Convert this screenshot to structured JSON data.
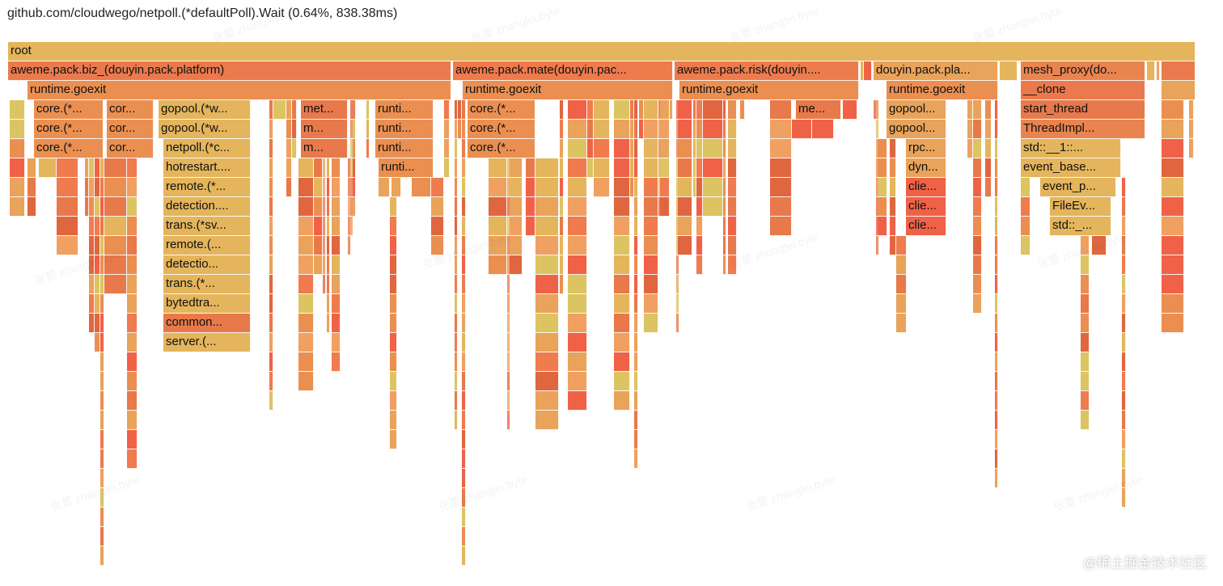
{
  "header": {
    "title": "github.com/cloudwego/netpoll.(*defaultPoll).Wait (0.64%, 838.38ms)"
  },
  "watermark": "张蕾 zhanglei.byte",
  "corner_mark": "@稀土掘金技术社区",
  "palette": [
    "#e0663f",
    "#e8794a",
    "#eb8f51",
    "#e9a35a",
    "#e4b55c",
    "#dcc462",
    "#f0a060",
    "#ef7b4f",
    "#f06248"
  ],
  "frames": [
    {
      "label": "root",
      "row": 0,
      "start": 10,
      "end": 1478,
      "color": "#e4b55c"
    },
    {
      "label": "aweme.pack.biz_(douyin.pack.platform)",
      "row": 1,
      "start": 10,
      "end": 558,
      "color": "#ea7a4d"
    },
    {
      "label": "aweme.pack.mate(douyin.pac...",
      "row": 1,
      "start": 560,
      "end": 832,
      "color": "#ef7a4c"
    },
    {
      "label": "aweme.pack.risk(douyin....",
      "row": 1,
      "start": 834,
      "end": 1062,
      "color": "#ec7c4e"
    },
    {
      "label": "",
      "row": 1,
      "start": 1064,
      "end": 1066,
      "color": "#e4b55c"
    },
    {
      "label": "",
      "row": 1,
      "start": 1068,
      "end": 1078,
      "color": "#f06248"
    },
    {
      "label": "douyin.pack.pla...",
      "row": 1,
      "start": 1080,
      "end": 1234,
      "color": "#e9a35a"
    },
    {
      "label": "",
      "row": 1,
      "start": 1236,
      "end": 1258,
      "color": "#e4b55c"
    },
    {
      "label": "mesh_proxy(do...",
      "row": 1,
      "start": 1262,
      "end": 1416,
      "color": "#e98450"
    },
    {
      "label": "",
      "row": 1,
      "start": 1418,
      "end": 1428,
      "color": "#e4b55c"
    },
    {
      "label": "",
      "row": 1,
      "start": 1430,
      "end": 1434,
      "color": "#f0a060"
    },
    {
      "label": "",
      "row": 1,
      "start": 1436,
      "end": 1478,
      "color": "#ea7a4d"
    },
    {
      "label": "runtime.goexit",
      "row": 2,
      "start": 34,
      "end": 558,
      "color": "#eb8f51"
    },
    {
      "label": "runtime.goexit",
      "row": 2,
      "start": 572,
      "end": 832,
      "color": "#eb8f51"
    },
    {
      "label": "runtime.goexit",
      "row": 2,
      "start": 840,
      "end": 1062,
      "color": "#eb8f51"
    },
    {
      "label": "runtime.goexit",
      "row": 2,
      "start": 1096,
      "end": 1234,
      "color": "#eb8f51"
    },
    {
      "label": "__clone",
      "row": 2,
      "start": 1262,
      "end": 1416,
      "color": "#ea7a4d"
    },
    {
      "label": "",
      "row": 2,
      "start": 1436,
      "end": 1478,
      "color": "#e9a35a"
    },
    {
      "label": "core.(*...",
      "row": 3,
      "start": 42,
      "end": 128,
      "color": "#eb8f51"
    },
    {
      "label": "cor...",
      "row": 3,
      "start": 132,
      "end": 190,
      "color": "#eb8f51"
    },
    {
      "label": "gopool.(*w...",
      "row": 3,
      "start": 196,
      "end": 310,
      "color": "#e4b55c"
    },
    {
      "label": "met...",
      "row": 3,
      "start": 372,
      "end": 430,
      "color": "#e8794a"
    },
    {
      "label": "runti...",
      "row": 3,
      "start": 464,
      "end": 536,
      "color": "#eb8f51"
    },
    {
      "label": "core.(*...",
      "row": 3,
      "start": 578,
      "end": 662,
      "color": "#eb8f51"
    },
    {
      "label": "me...",
      "row": 3,
      "start": 984,
      "end": 1040,
      "color": "#e8794a"
    },
    {
      "label": "gopool...",
      "row": 3,
      "start": 1096,
      "end": 1170,
      "color": "#e9a35a"
    },
    {
      "label": "start_thread",
      "row": 3,
      "start": 1262,
      "end": 1416,
      "color": "#e8794a"
    },
    {
      "label": "core.(*...",
      "row": 4,
      "start": 42,
      "end": 128,
      "color": "#eb8f51"
    },
    {
      "label": "cor...",
      "row": 4,
      "start": 132,
      "end": 190,
      "color": "#eb8f51"
    },
    {
      "label": "gopool.(*w...",
      "row": 4,
      "start": 196,
      "end": 310,
      "color": "#e4b55c"
    },
    {
      "label": "m...",
      "row": 4,
      "start": 372,
      "end": 430,
      "color": "#e8794a"
    },
    {
      "label": "runti...",
      "row": 4,
      "start": 464,
      "end": 536,
      "color": "#eb8f51"
    },
    {
      "label": "core.(*...",
      "row": 4,
      "start": 578,
      "end": 662,
      "color": "#eb8f51"
    },
    {
      "label": "gopool...",
      "row": 4,
      "start": 1096,
      "end": 1170,
      "color": "#e9a35a"
    },
    {
      "label": "ThreadImpl...",
      "row": 4,
      "start": 1262,
      "end": 1416,
      "color": "#e98450"
    },
    {
      "label": "core.(*...",
      "row": 5,
      "start": 42,
      "end": 128,
      "color": "#eb8f51"
    },
    {
      "label": "cor...",
      "row": 5,
      "start": 132,
      "end": 190,
      "color": "#eb8f51"
    },
    {
      "label": "netpoll.(*c...",
      "row": 5,
      "start": 202,
      "end": 310,
      "color": "#e4b55c"
    },
    {
      "label": "m...",
      "row": 5,
      "start": 372,
      "end": 430,
      "color": "#e8794a"
    },
    {
      "label": "runti...",
      "row": 5,
      "start": 464,
      "end": 536,
      "color": "#eb8f51"
    },
    {
      "label": "core.(*...",
      "row": 5,
      "start": 578,
      "end": 662,
      "color": "#eb8f51"
    },
    {
      "label": "rpc...",
      "row": 5,
      "start": 1120,
      "end": 1170,
      "color": "#e9a35a"
    },
    {
      "label": "std::__1::...",
      "row": 5,
      "start": 1262,
      "end": 1386,
      "color": "#e4b55c"
    },
    {
      "label": "hotrestart....",
      "row": 6,
      "start": 202,
      "end": 310,
      "color": "#e4b55c"
    },
    {
      "label": "runti...",
      "row": 6,
      "start": 468,
      "end": 536,
      "color": "#eb8f51"
    },
    {
      "label": "dyn...",
      "row": 6,
      "start": 1120,
      "end": 1170,
      "color": "#e9a35a"
    },
    {
      "label": "event_base...",
      "row": 6,
      "start": 1262,
      "end": 1386,
      "color": "#e4b55c"
    },
    {
      "label": "remote.(*...",
      "row": 7,
      "start": 202,
      "end": 310,
      "color": "#e4b55c"
    },
    {
      "label": "",
      "row": 7,
      "start": 468,
      "end": 482,
      "color": "#e9a35a"
    },
    {
      "label": "",
      "row": 7,
      "start": 484,
      "end": 496,
      "color": "#e9a35a"
    },
    {
      "label": "clie...",
      "row": 7,
      "start": 1120,
      "end": 1170,
      "color": "#f06248"
    },
    {
      "label": "event_p...",
      "row": 7,
      "start": 1286,
      "end": 1380,
      "color": "#e4b55c"
    },
    {
      "label": "detection....",
      "row": 8,
      "start": 202,
      "end": 310,
      "color": "#e4b55c"
    },
    {
      "label": "clie...",
      "row": 8,
      "start": 1120,
      "end": 1170,
      "color": "#f06248"
    },
    {
      "label": "FileEv...",
      "row": 8,
      "start": 1298,
      "end": 1374,
      "color": "#e4b55c"
    },
    {
      "label": "trans.(*sv...",
      "row": 9,
      "start": 202,
      "end": 310,
      "color": "#e4b55c"
    },
    {
      "label": "clie...",
      "row": 9,
      "start": 1120,
      "end": 1170,
      "color": "#f06248"
    },
    {
      "label": "std::_...",
      "row": 9,
      "start": 1298,
      "end": 1374,
      "color": "#e4b55c"
    },
    {
      "label": "remote.(...",
      "row": 10,
      "start": 202,
      "end": 310,
      "color": "#e4b55c"
    },
    {
      "label": "detectio...",
      "row": 11,
      "start": 202,
      "end": 310,
      "color": "#e4b55c"
    },
    {
      "label": "trans.(*...",
      "row": 12,
      "start": 202,
      "end": 310,
      "color": "#e4b55c"
    },
    {
      "label": "bytedtra...",
      "row": 13,
      "start": 202,
      "end": 310,
      "color": "#e4b55c"
    },
    {
      "label": "common...",
      "row": 14,
      "start": 202,
      "end": 310,
      "color": "#e8794a"
    },
    {
      "label": "server.(...",
      "row": 15,
      "start": 202,
      "end": 310,
      "color": "#e4b55c"
    }
  ]
}
